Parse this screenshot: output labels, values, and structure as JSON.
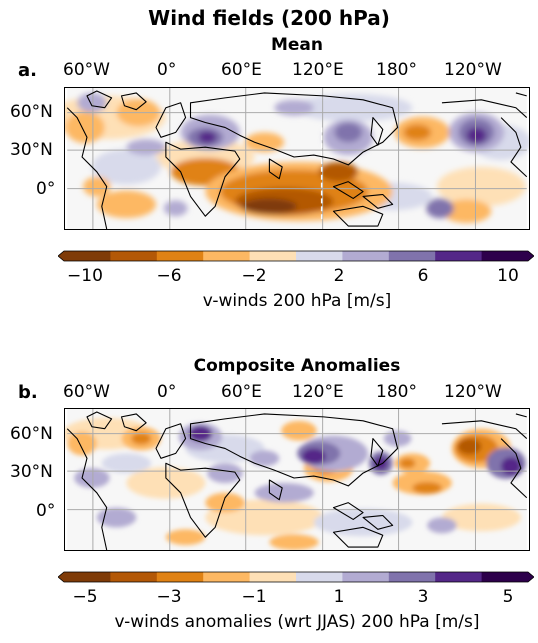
{
  "figure": {
    "title": "Wind fields (200 hPa)"
  },
  "panels": [
    {
      "label": "a.",
      "title": "Mean",
      "lon_ticks": [
        "60°W",
        "0°",
        "60°E",
        "120°E",
        "180°",
        "120°W"
      ],
      "lat_ticks": [
        "60°N",
        "30°N",
        "0°"
      ],
      "colorbar": {
        "ticks": [
          "−10",
          "−6",
          "−2",
          "2",
          "6",
          "10"
        ],
        "label": "v-winds 200 hPa [m/s]",
        "range": [
          -10,
          10
        ],
        "levels": 10
      }
    },
    {
      "label": "b.",
      "title": "Composite Anomalies",
      "lon_ticks": [
        "60°W",
        "0°",
        "60°E",
        "120°E",
        "180°",
        "120°W"
      ],
      "lat_ticks": [
        "60°N",
        "30°N",
        "0°"
      ],
      "colorbar": {
        "ticks": [
          "−5",
          "−3",
          "−1",
          "1",
          "3",
          "5"
        ],
        "label": "v-winds anomalies (wrt JJAS) 200 hPa [m/s]",
        "range": [
          -5,
          5
        ],
        "levels": 10
      }
    }
  ],
  "colormap": [
    "#7f3b08",
    "#b35806",
    "#e08214",
    "#fdb863",
    "#fee0b6",
    "#d8daeb",
    "#b2abd2",
    "#8073ac",
    "#542788",
    "#2d004b"
  ],
  "colors": {
    "coastline": "#000000",
    "gridline": "#aaaaaa",
    "frame": "#000000"
  }
}
